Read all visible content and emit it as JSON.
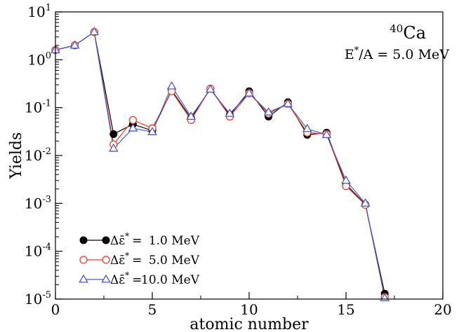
{
  "chart_data": {
    "type": "line",
    "title": "",
    "xlabel": "atomic number",
    "ylabel": "Yields",
    "xlim": [
      0,
      20
    ],
    "ylim": [
      1e-05,
      10
    ],
    "yscale": "log",
    "grid": false,
    "legend_position": "bottom-left",
    "x_ticks": [
      {
        "value": 0,
        "label": "0"
      },
      {
        "value": 5,
        "label": "5"
      },
      {
        "value": 10,
        "label": "10"
      },
      {
        "value": 15,
        "label": "15"
      },
      {
        "value": 20,
        "label": "20"
      }
    ],
    "y_ticks": [
      {
        "value": 1e-05,
        "base": "10",
        "exp": "-5"
      },
      {
        "value": 0.0001,
        "base": "10",
        "exp": "-4"
      },
      {
        "value": 0.001,
        "base": "10",
        "exp": "-3"
      },
      {
        "value": 0.01,
        "base": "10",
        "exp": "-2"
      },
      {
        "value": 0.1,
        "base": "10",
        "exp": "-1"
      },
      {
        "value": 1,
        "base": "10",
        "exp": "0"
      },
      {
        "value": 10,
        "base": "10",
        "exp": "1"
      }
    ],
    "annotations": {
      "nucleus_mass": "40",
      "nucleus_symbol": "Ca",
      "energy_prefix": "E",
      "energy_sup": "*",
      "energy_suffix": "/A = 5.0 MeV"
    },
    "x": [
      0,
      1,
      2,
      3,
      4,
      5,
      6,
      7,
      8,
      9,
      10,
      11,
      12,
      13,
      14,
      15,
      16,
      17
    ],
    "series": [
      {
        "legend_value": "1.0 MeV",
        "color": "#000000",
        "marker": "filled-circle",
        "values": [
          1.6,
          2.0,
          3.8,
          0.028,
          0.045,
          0.033,
          0.23,
          0.06,
          0.25,
          0.07,
          0.22,
          0.065,
          0.13,
          0.027,
          0.03,
          0.0025,
          0.00095,
          1.3e-05
        ]
      },
      {
        "legend_value": "5.0 MeV",
        "color": "#e8402a",
        "marker": "open-circle",
        "values": [
          1.6,
          2.0,
          3.8,
          0.017,
          0.055,
          0.037,
          0.22,
          0.055,
          0.25,
          0.065,
          0.2,
          0.075,
          0.12,
          0.03,
          0.028,
          0.0023,
          0.00093,
          1.1e-05
        ]
      },
      {
        "legend_value": "10.0 MeV",
        "color": "#4a5bc4",
        "marker": "open-triangle",
        "values": [
          1.6,
          2.0,
          3.8,
          0.014,
          0.037,
          0.031,
          0.28,
          0.065,
          0.24,
          0.075,
          0.2,
          0.08,
          0.12,
          0.036,
          0.027,
          0.003,
          0.001,
          1.05e-05
        ]
      }
    ],
    "legend_label_prefix": "Δε̄",
    "legend_label_sup": "*",
    "legend_label_eq": "="
  }
}
